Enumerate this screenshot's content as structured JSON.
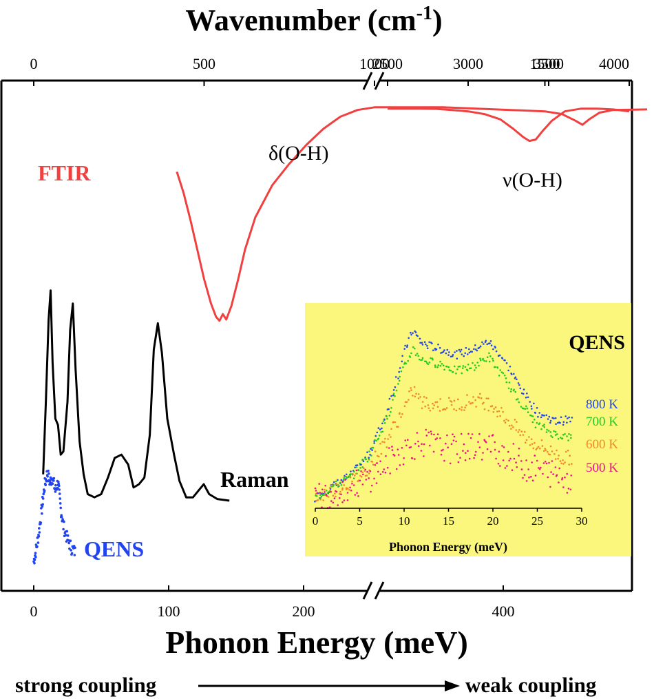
{
  "chart_data": {
    "type": "line",
    "title_top_axis": "Wavenumber (cm",
    "title_top_axis_sup": "-1",
    "title_top_axis_close": ")",
    "xlabel": "Phonon Energy (meV)",
    "top_axis": {
      "segments": [
        {
          "range": [
            0,
            1800
          ],
          "ticks": [
            0,
            500,
            1000,
            1500
          ]
        },
        {
          "range": [
            2500,
            4000
          ],
          "ticks": [
            2500,
            3000,
            3500,
            4000
          ]
        }
      ],
      "tick_labels": [
        "0",
        "500",
        "1000",
        "1500",
        "2500",
        "3000",
        "3500",
        "4000"
      ]
    },
    "bottom_axis": {
      "segments": [
        {
          "range": [
            0,
            225
          ],
          "ticks": [
            0,
            100,
            200
          ]
        },
        {
          "range": [
            310,
            500
          ],
          "ticks": [
            400
          ]
        }
      ],
      "tick_labels": [
        "0",
        "100",
        "200",
        "400"
      ]
    },
    "colors": {
      "ftir": "#f04040",
      "raman": "#000000",
      "qens": "#2244ee",
      "inset_bg": "#fbf77c",
      "k800": "#2244ee",
      "k700": "#22cc22",
      "k600": "#f08a28",
      "k500": "#ee1188"
    },
    "series": [
      {
        "name": "FTIR",
        "label": "FTIR",
        "unit": "cm-1",
        "points_segment1": [
          [
            420,
            0.26
          ],
          [
            440,
            0.34
          ],
          [
            460,
            0.44
          ],
          [
            480,
            0.55
          ],
          [
            500,
            0.66
          ],
          [
            520,
            0.75
          ],
          [
            535,
            0.8
          ],
          [
            545,
            0.815
          ],
          [
            555,
            0.79
          ],
          [
            565,
            0.81
          ],
          [
            580,
            0.76
          ],
          [
            600,
            0.66
          ],
          [
            620,
            0.55
          ],
          [
            650,
            0.43
          ],
          [
            700,
            0.31
          ],
          [
            750,
            0.23
          ],
          [
            800,
            0.16
          ],
          [
            850,
            0.1
          ],
          [
            900,
            0.055
          ],
          [
            950,
            0.03
          ],
          [
            1000,
            0.02
          ],
          [
            1100,
            0.02
          ],
          [
            1200,
            0.02
          ],
          [
            1300,
            0.025
          ],
          [
            1400,
            0.03
          ],
          [
            1500,
            0.035
          ],
          [
            1550,
            0.045
          ],
          [
            1590,
            0.07
          ],
          [
            1610,
            0.085
          ],
          [
            1630,
            0.065
          ],
          [
            1660,
            0.04
          ],
          [
            1700,
            0.03
          ],
          [
            1800,
            0.028
          ]
        ],
        "points_segment2": [
          [
            2500,
            0.025
          ],
          [
            2700,
            0.025
          ],
          [
            2800,
            0.026
          ],
          [
            2900,
            0.03
          ],
          [
            3000,
            0.035
          ],
          [
            3100,
            0.045
          ],
          [
            3200,
            0.065
          ],
          [
            3280,
            0.1
          ],
          [
            3340,
            0.13
          ],
          [
            3380,
            0.145
          ],
          [
            3420,
            0.14
          ],
          [
            3460,
            0.11
          ],
          [
            3520,
            0.07
          ],
          [
            3600,
            0.035
          ],
          [
            3700,
            0.025
          ],
          [
            3800,
            0.025
          ],
          [
            3900,
            0.028
          ],
          [
            4000,
            0.035
          ]
        ],
        "annotations": [
          "δ(O-H)",
          "ν(O-H)"
        ]
      },
      {
        "name": "Raman",
        "label": "Raman",
        "unit": "meV",
        "points": [
          [
            7,
            0.08
          ],
          [
            9,
            0.3
          ],
          [
            11,
            0.55
          ],
          [
            12.5,
            0.64
          ],
          [
            14,
            0.42
          ],
          [
            16,
            0.25
          ],
          [
            18,
            0.23
          ],
          [
            20,
            0.14
          ],
          [
            22,
            0.15
          ],
          [
            25,
            0.3
          ],
          [
            27,
            0.52
          ],
          [
            29,
            0.6
          ],
          [
            31,
            0.4
          ],
          [
            34,
            0.18
          ],
          [
            37,
            0.08
          ],
          [
            40,
            0.02
          ],
          [
            45,
            0.01
          ],
          [
            50,
            0.02
          ],
          [
            55,
            0.07
          ],
          [
            60,
            0.13
          ],
          [
            65,
            0.14
          ],
          [
            70,
            0.11
          ],
          [
            74,
            0.04
          ],
          [
            78,
            0.05
          ],
          [
            82,
            0.07
          ],
          [
            86,
            0.2
          ],
          [
            89,
            0.46
          ],
          [
            92,
            0.54
          ],
          [
            95,
            0.45
          ],
          [
            99,
            0.25
          ],
          [
            104,
            0.14
          ],
          [
            108,
            0.06
          ],
          [
            113,
            0.01
          ],
          [
            118,
            0.01
          ],
          [
            122,
            0.03
          ],
          [
            126,
            0.05
          ],
          [
            130,
            0.02
          ],
          [
            136,
            0.005
          ],
          [
            145,
            0.0
          ]
        ]
      },
      {
        "name": "QENS",
        "label": "QENS",
        "unit": "meV",
        "points": [
          [
            0,
            0.02
          ],
          [
            2,
            0.05
          ],
          [
            4,
            0.09
          ],
          [
            6,
            0.14
          ],
          [
            8,
            0.19
          ],
          [
            10,
            0.22
          ],
          [
            12,
            0.2
          ],
          [
            14,
            0.21
          ],
          [
            16,
            0.18
          ],
          [
            18,
            0.2
          ],
          [
            20,
            0.14
          ],
          [
            22,
            0.1
          ],
          [
            25,
            0.07
          ],
          [
            28,
            0.05
          ],
          [
            31,
            0.04
          ]
        ]
      }
    ],
    "inset": {
      "title": "QENS",
      "xlabel": "Phonon Energy (meV)",
      "x_ticks": [
        "0",
        "5",
        "10",
        "15",
        "20",
        "25",
        "30"
      ],
      "xlim": [
        0,
        30
      ],
      "series": [
        {
          "name": "800 K",
          "values": [
            [
              0,
              0.02
            ],
            [
              2,
              0.08
            ],
            [
              4,
              0.14
            ],
            [
              6,
              0.25
            ],
            [
              8,
              0.47
            ],
            [
              10,
              0.8
            ],
            [
              11,
              0.92
            ],
            [
              12,
              0.85
            ],
            [
              14,
              0.82
            ],
            [
              16,
              0.79
            ],
            [
              18,
              0.82
            ],
            [
              19.5,
              0.86
            ],
            [
              21,
              0.78
            ],
            [
              23,
              0.62
            ],
            [
              25,
              0.48
            ],
            [
              27,
              0.43
            ],
            [
              29,
              0.44
            ]
          ]
        },
        {
          "name": "700 K",
          "values": [
            [
              0,
              0.02
            ],
            [
              2,
              0.08
            ],
            [
              4,
              0.13
            ],
            [
              6,
              0.24
            ],
            [
              8,
              0.44
            ],
            [
              10,
              0.72
            ],
            [
              11,
              0.82
            ],
            [
              12,
              0.76
            ],
            [
              14,
              0.74
            ],
            [
              16,
              0.7
            ],
            [
              18,
              0.73
            ],
            [
              19.5,
              0.78
            ],
            [
              21,
              0.68
            ],
            [
              23,
              0.54
            ],
            [
              25,
              0.41
            ],
            [
              27,
              0.36
            ],
            [
              29,
              0.34
            ]
          ]
        },
        {
          "name": "600 K",
          "values": [
            [
              0,
              0.02
            ],
            [
              2,
              0.06
            ],
            [
              4,
              0.1
            ],
            [
              6,
              0.18
            ],
            [
              8,
              0.33
            ],
            [
              10,
              0.5
            ],
            [
              11,
              0.6
            ],
            [
              12,
              0.53
            ],
            [
              14,
              0.52
            ],
            [
              16,
              0.52
            ],
            [
              18,
              0.55
            ],
            [
              20,
              0.52
            ],
            [
              22,
              0.42
            ],
            [
              24,
              0.33
            ],
            [
              26,
              0.28
            ],
            [
              28,
              0.23
            ],
            [
              29,
              0.24
            ]
          ]
        },
        {
          "name": "500 K",
          "values": [
            [
              0,
              0.02
            ],
            [
              2,
              0.05
            ],
            [
              4,
              0.08
            ],
            [
              6,
              0.12
            ],
            [
              8,
              0.2
            ],
            [
              10,
              0.28
            ],
            [
              12,
              0.32
            ],
            [
              14,
              0.29
            ],
            [
              16,
              0.28
            ],
            [
              18,
              0.3
            ],
            [
              20,
              0.29
            ],
            [
              22,
              0.24
            ],
            [
              24,
              0.18
            ],
            [
              26,
              0.16
            ],
            [
              28,
              0.13
            ],
            [
              29,
              0.12
            ]
          ]
        }
      ]
    },
    "coupling": {
      "left": "strong coupling",
      "right": "weak coupling"
    }
  }
}
